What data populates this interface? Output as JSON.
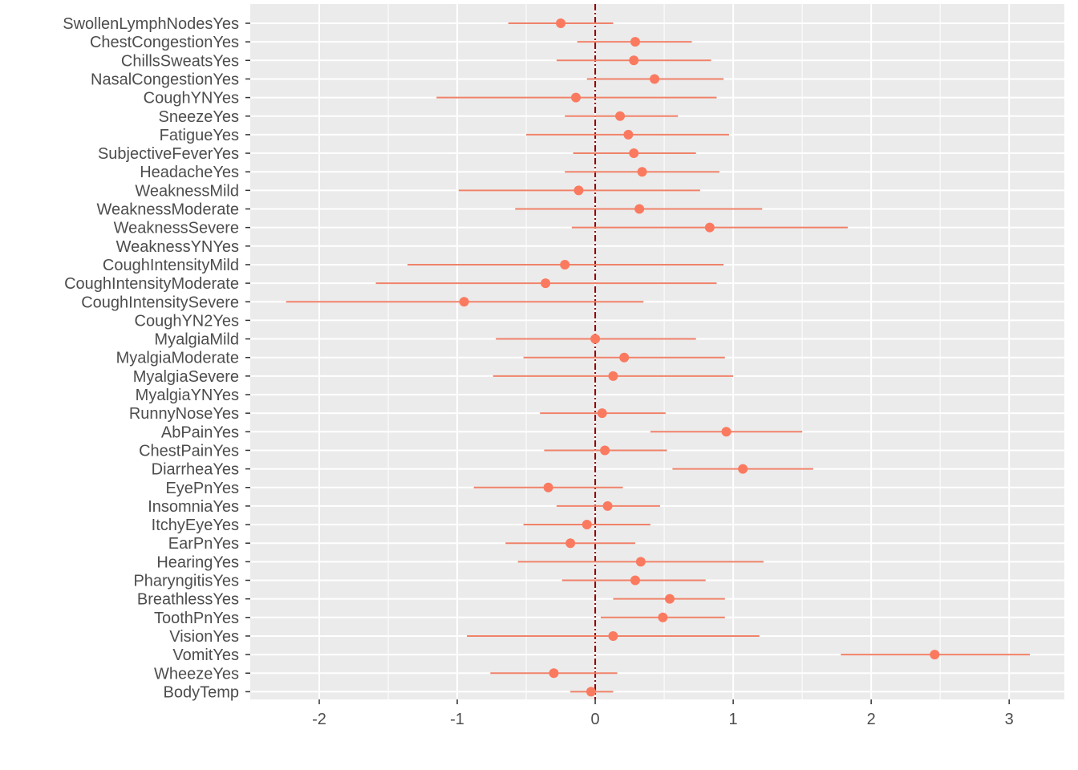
{
  "chart_data": {
    "type": "scatter",
    "subtype": "coefficient-errorbar",
    "title": "",
    "xlabel": "",
    "ylabel": "",
    "xlim": [
      -2.5,
      3.4
    ],
    "x_ticks": [
      -2,
      -1,
      0,
      1,
      2,
      3
    ],
    "x_tick_labels": [
      "-2",
      "-1",
      "0",
      "1",
      "2",
      "3"
    ],
    "reference_line": 0,
    "grid": true,
    "legend": "none",
    "colors": {
      "point": "#fa7a60",
      "errorbar": "#f0826a",
      "reference_line": "#8b0000",
      "panel_background": "#ebebeb",
      "grid": "#ffffff",
      "text": "#4d4d4d"
    },
    "terms": [
      {
        "label": "SwollenLymphNodesYes",
        "estimate": -0.25,
        "low": -0.63,
        "high": 0.13
      },
      {
        "label": "ChestCongestionYes",
        "estimate": 0.29,
        "low": -0.13,
        "high": 0.7
      },
      {
        "label": "ChillsSweatsYes",
        "estimate": 0.28,
        "low": -0.28,
        "high": 0.84
      },
      {
        "label": "NasalCongestionYes",
        "estimate": 0.43,
        "low": -0.06,
        "high": 0.93
      },
      {
        "label": "CoughYNYes",
        "estimate": -0.14,
        "low": -1.15,
        "high": 0.88
      },
      {
        "label": "SneezeYes",
        "estimate": 0.18,
        "low": -0.22,
        "high": 0.6
      },
      {
        "label": "FatigueYes",
        "estimate": 0.24,
        "low": -0.5,
        "high": 0.97
      },
      {
        "label": "SubjectiveFeverYes",
        "estimate": 0.28,
        "low": -0.16,
        "high": 0.73
      },
      {
        "label": "HeadacheYes",
        "estimate": 0.34,
        "low": -0.22,
        "high": 0.9
      },
      {
        "label": "WeaknessMild",
        "estimate": -0.12,
        "low": -0.99,
        "high": 0.76
      },
      {
        "label": "WeaknessModerate",
        "estimate": 0.32,
        "low": -0.58,
        "high": 1.21
      },
      {
        "label": "WeaknessSevere",
        "estimate": 0.83,
        "low": -0.17,
        "high": 1.83
      },
      {
        "label": "WeaknessYNYes",
        "estimate": null,
        "low": null,
        "high": null
      },
      {
        "label": "CoughIntensityMild",
        "estimate": -0.22,
        "low": -1.36,
        "high": 0.93
      },
      {
        "label": "CoughIntensityModerate",
        "estimate": -0.36,
        "low": -1.59,
        "high": 0.88
      },
      {
        "label": "CoughIntensitySevere",
        "estimate": -0.95,
        "low": -2.24,
        "high": 0.35
      },
      {
        "label": "CoughYN2Yes",
        "estimate": null,
        "low": null,
        "high": null
      },
      {
        "label": "MyalgiaMild",
        "estimate": 0.0,
        "low": -0.72,
        "high": 0.73
      },
      {
        "label": "MyalgiaModerate",
        "estimate": 0.21,
        "low": -0.52,
        "high": 0.94
      },
      {
        "label": "MyalgiaSevere",
        "estimate": 0.13,
        "low": -0.74,
        "high": 1.0
      },
      {
        "label": "MyalgiaYNYes",
        "estimate": null,
        "low": null,
        "high": null
      },
      {
        "label": "RunnyNoseYes",
        "estimate": 0.05,
        "low": -0.4,
        "high": 0.51
      },
      {
        "label": "AbPainYes",
        "estimate": 0.95,
        "low": 0.4,
        "high": 1.5
      },
      {
        "label": "ChestPainYes",
        "estimate": 0.07,
        "low": -0.37,
        "high": 0.52
      },
      {
        "label": "DiarrheaYes",
        "estimate": 1.07,
        "low": 0.56,
        "high": 1.58
      },
      {
        "label": "EyePnYes",
        "estimate": -0.34,
        "low": -0.88,
        "high": 0.2
      },
      {
        "label": "InsomniaYes",
        "estimate": 0.09,
        "low": -0.28,
        "high": 0.47
      },
      {
        "label": "ItchyEyeYes",
        "estimate": -0.06,
        "low": -0.52,
        "high": 0.4
      },
      {
        "label": "EarPnYes",
        "estimate": -0.18,
        "low": -0.65,
        "high": 0.29
      },
      {
        "label": "HearingYes",
        "estimate": 0.33,
        "low": -0.56,
        "high": 1.22
      },
      {
        "label": "PharyngitisYes",
        "estimate": 0.29,
        "low": -0.24,
        "high": 0.8
      },
      {
        "label": "BreathlessYes",
        "estimate": 0.54,
        "low": 0.13,
        "high": 0.94
      },
      {
        "label": "ToothPnYes",
        "estimate": 0.49,
        "low": 0.04,
        "high": 0.94
      },
      {
        "label": "VisionYes",
        "estimate": 0.13,
        "low": -0.93,
        "high": 1.19
      },
      {
        "label": "VomitYes",
        "estimate": 2.46,
        "low": 1.78,
        "high": 3.15
      },
      {
        "label": "WheezeYes",
        "estimate": -0.3,
        "low": -0.76,
        "high": 0.16
      },
      {
        "label": "BodyTemp",
        "estimate": -0.03,
        "low": -0.18,
        "high": 0.13
      }
    ]
  }
}
